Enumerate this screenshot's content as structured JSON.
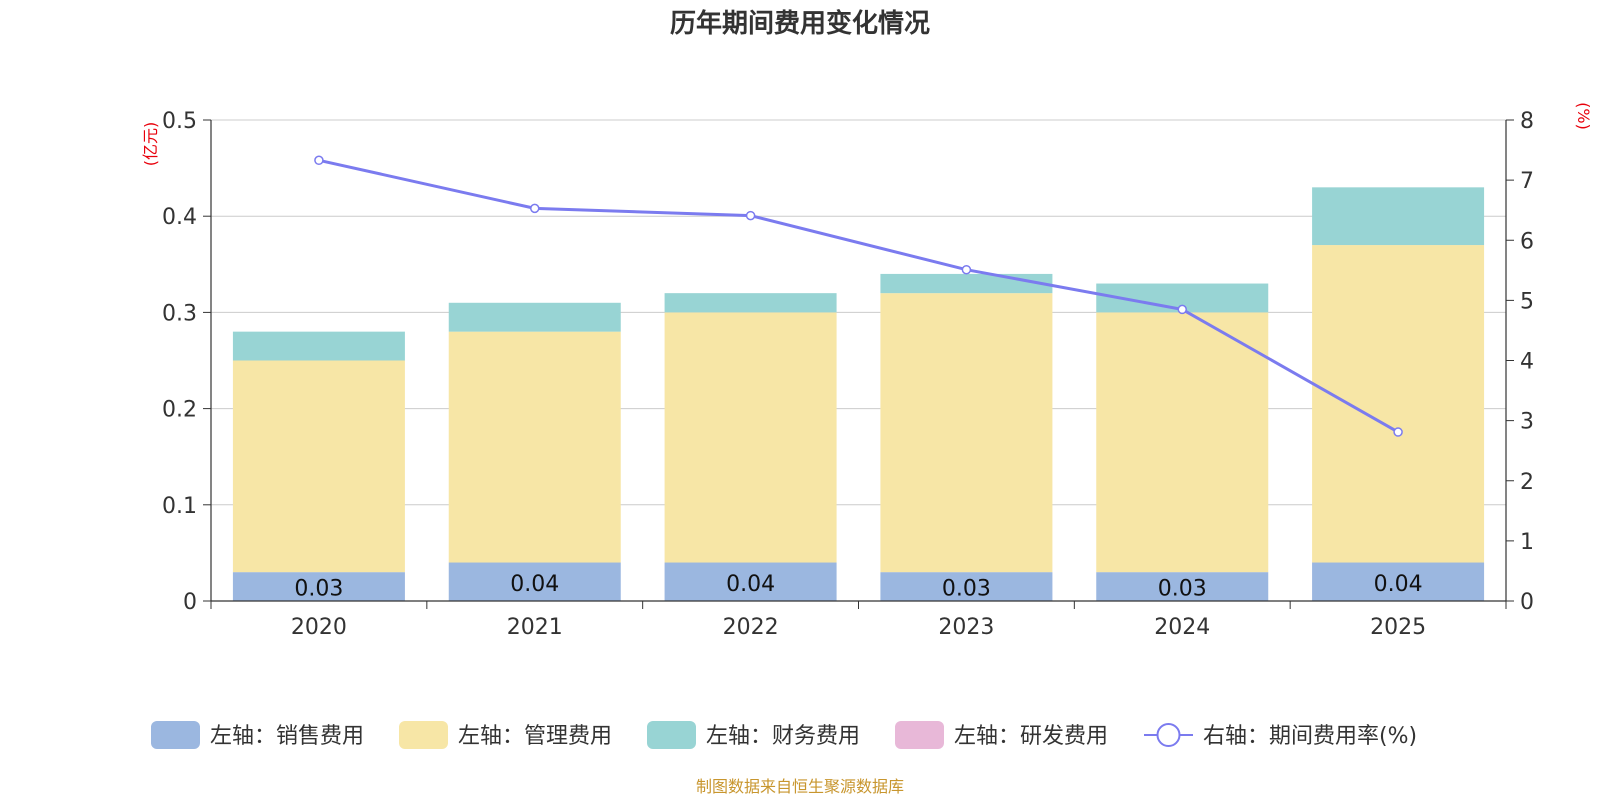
{
  "chart_data": {
    "type": "bar",
    "title": "历年期间费用变化情况",
    "categories": [
      "2020",
      "2021",
      "2022",
      "2023",
      "2024",
      "2025"
    ],
    "left_axis": {
      "unit": "(亿元)",
      "ylim": [
        0,
        0.5
      ],
      "ticks": [
        "0",
        "0.1",
        "0.2",
        "0.3",
        "0.4",
        "0.5"
      ]
    },
    "right_axis": {
      "unit": "(%)",
      "ylim": [
        0,
        8
      ],
      "ticks": [
        "0",
        "1",
        "2",
        "3",
        "4",
        "5",
        "6",
        "7",
        "8"
      ]
    },
    "grid": true,
    "stacked": true,
    "series": [
      {
        "name": "左轴：销售费用",
        "type": "bar",
        "axis": "left",
        "color": "#9bb7e0",
        "values": [
          0.03,
          0.04,
          0.04,
          0.03,
          0.03,
          0.04
        ],
        "labels": [
          "0.03",
          "0.04",
          "0.04",
          "0.03",
          "0.03",
          "0.04"
        ]
      },
      {
        "name": "左轴：管理费用",
        "type": "bar",
        "axis": "left",
        "color": "#f7e6a6",
        "values": [
          0.22,
          0.24,
          0.26,
          0.29,
          0.27,
          0.33
        ]
      },
      {
        "name": "左轴：财务费用",
        "type": "bar",
        "axis": "left",
        "color": "#98d4d4",
        "values": [
          0.03,
          0.03,
          0.02,
          0.02,
          0.03,
          0.06
        ]
      },
      {
        "name": "左轴：研发费用",
        "type": "bar",
        "axis": "left",
        "color": "#e8b8d8",
        "values": [
          0,
          0,
          0,
          0,
          0,
          0
        ]
      },
      {
        "name": "右轴：期间费用率(%)",
        "type": "line",
        "axis": "right",
        "color": "#7b7bef",
        "values": [
          7.33,
          6.53,
          6.41,
          5.51,
          4.85,
          2.81
        ]
      }
    ],
    "legend_position": "bottom",
    "source": "制图数据来自恒生聚源数据库"
  }
}
